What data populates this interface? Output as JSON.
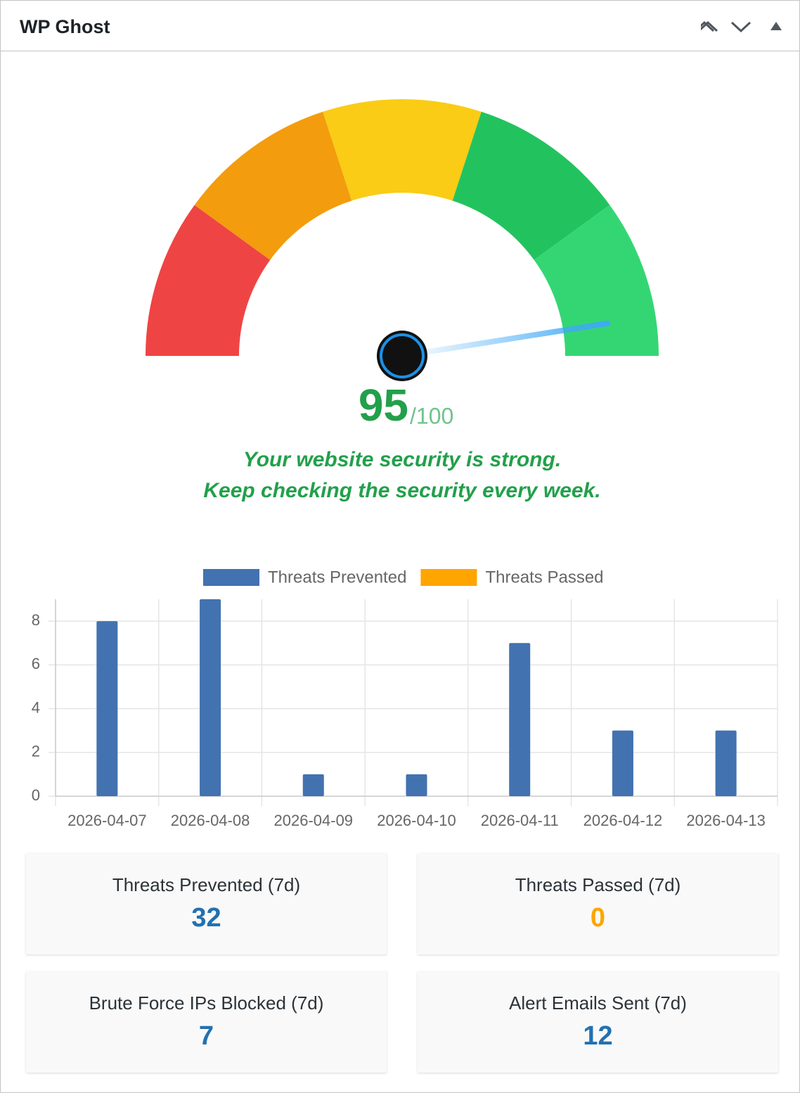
{
  "header": {
    "title": "WP Ghost"
  },
  "gauge": {
    "score": 95,
    "max": {
      "value": 100,
      "label": "/100"
    },
    "color": "#22a04b",
    "message": [
      "Your website security is strong.",
      "Keep checking the security every week."
    ],
    "bands": [
      {
        "from": 0,
        "to": 20,
        "color": "#ef4444"
      },
      {
        "from": 20,
        "to": 40,
        "color": "#f39c0e"
      },
      {
        "from": 40,
        "to": 60,
        "color": "#facc15"
      },
      {
        "from": 60,
        "to": 80,
        "color": "#22c35e"
      },
      {
        "from": 80,
        "to": 100,
        "color": "#34d674"
      }
    ]
  },
  "chart_data": {
    "type": "bar",
    "categories": [
      "2026-04-07",
      "2026-04-08",
      "2026-04-09",
      "2026-04-10",
      "2026-04-11",
      "2026-04-12",
      "2026-04-13"
    ],
    "series": [
      {
        "name": "Threats Prevented",
        "color": "#4272b0",
        "values": [
          8,
          9,
          1,
          1,
          7,
          3,
          3
        ]
      },
      {
        "name": "Threats Passed",
        "color": "#ffa500",
        "values": [
          0,
          0,
          0,
          0,
          0,
          0,
          0
        ]
      }
    ],
    "ylim": [
      0,
      9
    ],
    "yticks": [
      0,
      2,
      4,
      6,
      8
    ],
    "grid": true,
    "stacked": true
  },
  "stats": [
    {
      "label": "Threats Prevented (7d)",
      "value": 32,
      "color": "#2271b1"
    },
    {
      "label": "Threats Passed (7d)",
      "value": 0,
      "color": "#ffa500"
    },
    {
      "label": "Brute Force IPs Blocked (7d)",
      "value": 7,
      "color": "#2271b1"
    },
    {
      "label": "Alert Emails Sent (7d)",
      "value": 12,
      "color": "#2271b1"
    }
  ]
}
